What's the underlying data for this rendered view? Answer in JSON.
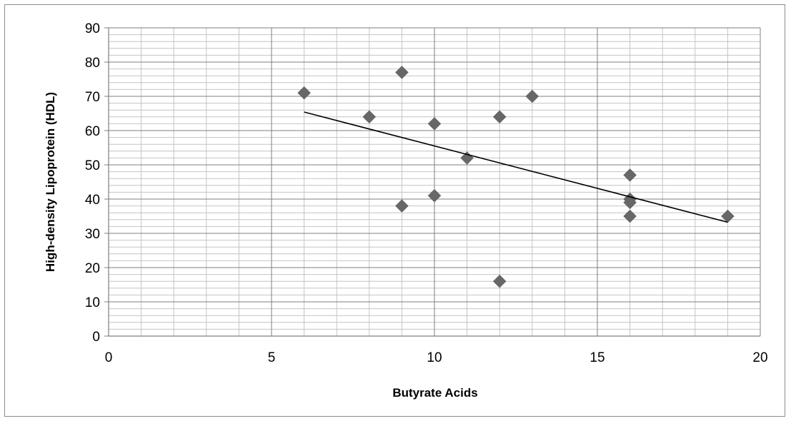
{
  "chart_data": {
    "type": "scatter",
    "title": "",
    "xlabel": "Butyrate Acids",
    "ylabel": "High-density Lipoprotein (HDL)",
    "xlim": [
      0,
      20
    ],
    "ylim": [
      0,
      90
    ],
    "x_ticks": [
      0,
      5,
      10,
      15,
      20
    ],
    "y_ticks": [
      0,
      10,
      20,
      30,
      40,
      50,
      60,
      70,
      80,
      90
    ],
    "x_minor_step": 1,
    "y_minor_step": 2,
    "grid": true,
    "legend": "none",
    "marker": "diamond",
    "marker_color": "#676767",
    "trendline": {
      "type": "linear",
      "color": "#000000",
      "x_start": 6,
      "x_end": 19
    },
    "series": [
      {
        "points": [
          {
            "x": 6,
            "y": 71
          },
          {
            "x": 8,
            "y": 64
          },
          {
            "x": 9,
            "y": 77
          },
          {
            "x": 9,
            "y": 38
          },
          {
            "x": 10,
            "y": 62
          },
          {
            "x": 10,
            "y": 41
          },
          {
            "x": 11,
            "y": 52
          },
          {
            "x": 12,
            "y": 64
          },
          {
            "x": 12,
            "y": 16
          },
          {
            "x": 13,
            "y": 70
          },
          {
            "x": 16,
            "y": 47
          },
          {
            "x": 16,
            "y": 40
          },
          {
            "x": 16,
            "y": 39
          },
          {
            "x": 16,
            "y": 35
          },
          {
            "x": 19,
            "y": 35
          }
        ]
      }
    ]
  }
}
